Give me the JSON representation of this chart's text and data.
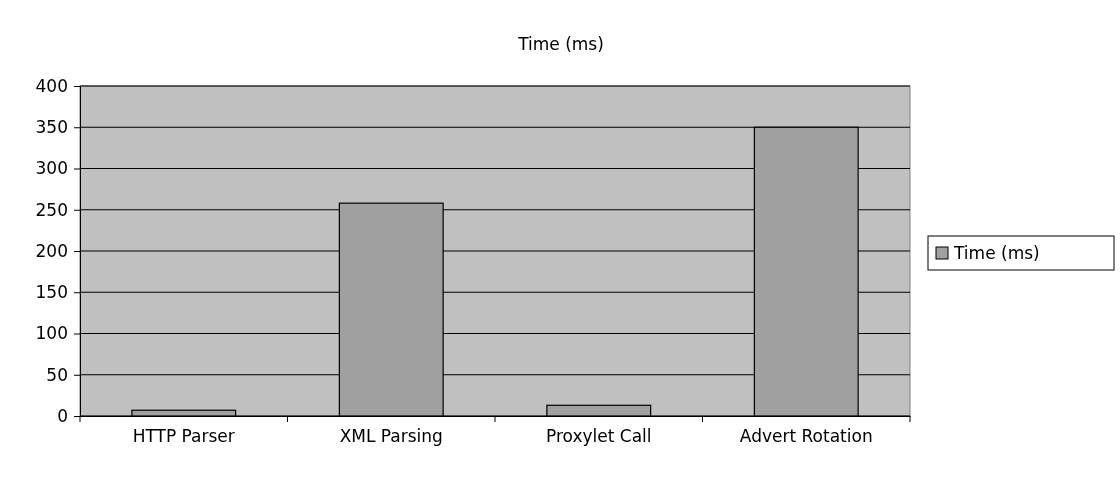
{
  "chart_data": {
    "type": "bar",
    "title": "Time (ms)",
    "categories": [
      "HTTP Parser",
      "XML Parsing",
      "Proxylet Call",
      "Advert Rotation"
    ],
    "series": [
      {
        "name": "Time (ms)",
        "color": "#a0a0a0",
        "values": [
          7,
          258,
          13,
          350
        ]
      }
    ],
    "ylim": [
      0,
      400
    ],
    "yticks": [
      0,
      50,
      100,
      150,
      200,
      250,
      300,
      350,
      400
    ],
    "grid": "y",
    "legend": "right"
  }
}
